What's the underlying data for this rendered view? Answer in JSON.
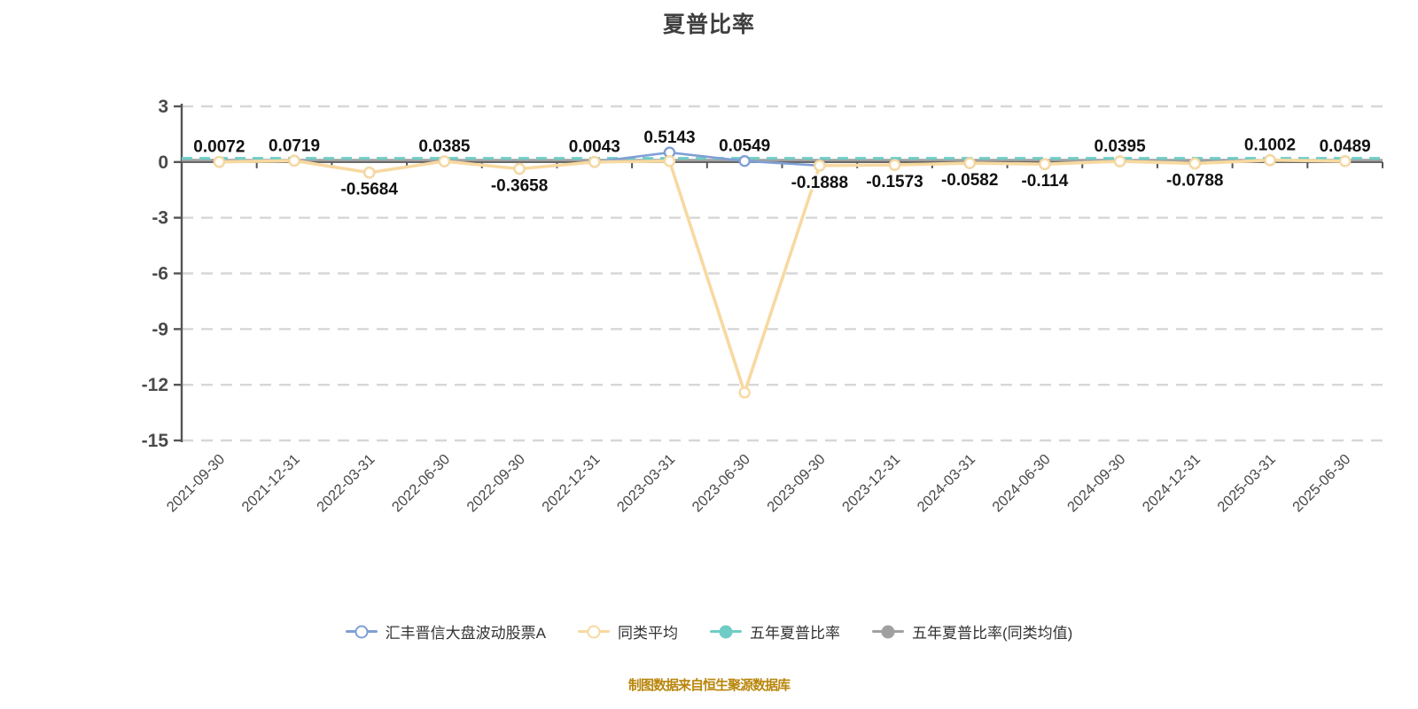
{
  "title": "夏普比率",
  "footer": "制图数据来自恒生聚源数据库",
  "colors": {
    "fund": "#7f9fd4",
    "peer": "#f7d9a0",
    "five_year": "#6fcdc6",
    "five_year_peer": "#a0a0a0",
    "axis": "#555555",
    "grid": "#d7d7d7",
    "tick_text": "#4a4a4a",
    "data_label": "#111111",
    "title_text": "#3f3f3f",
    "footer_text": "#b8860b"
  },
  "legend": [
    {
      "label": "汇丰晋信大盘波动股票A",
      "color": "#7f9fd4",
      "fill": "hollow"
    },
    {
      "label": "同类平均",
      "color": "#f7d9a0",
      "fill": "hollow"
    },
    {
      "label": "五年夏普比率",
      "color": "#6fcdc6",
      "fill": "solid"
    },
    {
      "label": "五年夏普比率(同类均值)",
      "color": "#a0a0a0",
      "fill": "solid"
    }
  ],
  "chart_data": {
    "type": "line",
    "title": "夏普比率",
    "xlabel": "",
    "ylabel": "",
    "ylim": [
      -15,
      3
    ],
    "yticks": [
      3,
      0,
      -3,
      -6,
      -9,
      -12,
      -15
    ],
    "grid": "dashed",
    "legend_position": "bottom",
    "categories": [
      "2021-09-30",
      "2021-12-31",
      "2022-03-31",
      "2022-06-30",
      "2022-09-30",
      "2022-12-31",
      "2023-03-31",
      "2023-06-30",
      "2023-09-30",
      "2023-12-31",
      "2024-03-31",
      "2024-06-30",
      "2024-09-30",
      "2024-12-31",
      "2025-03-31",
      "2025-06-30"
    ],
    "series": [
      {
        "name": "汇丰晋信大盘波动股票A",
        "color": "#7f9fd4",
        "marker": "hollow",
        "values": [
          0.0072,
          0.0719,
          -0.5684,
          0.0385,
          -0.3658,
          0.0043,
          0.5143,
          0.0549,
          -0.1888,
          -0.1573,
          -0.0582,
          -0.114,
          0.0395,
          -0.0788,
          0.1002,
          0.0489
        ],
        "point_labels": [
          "0.0072",
          "0.0719",
          "-0.5684",
          "0.0385",
          "-0.3658",
          "0.0043",
          "0.5143",
          "0.0549",
          "-0.1888",
          "-0.1573",
          "-0.0582",
          "-0.114",
          "0.0395",
          "-0.0788",
          "0.1002",
          "0.0489"
        ]
      },
      {
        "name": "同类平均",
        "color": "#f7d9a0",
        "marker": "hollow",
        "values": [
          0.0072,
          0.0719,
          -0.5684,
          0.0385,
          -0.3658,
          0.0043,
          0.05,
          -12.42,
          -0.1888,
          -0.1573,
          -0.0582,
          -0.114,
          0.0395,
          -0.0788,
          0.1002,
          0.0489
        ],
        "point_labels": []
      },
      {
        "name": "五年夏普比率",
        "color": "#6fcdc6",
        "style": "dashed",
        "constant": 0.2
      },
      {
        "name": "五年夏普比率(同类均值)",
        "color": "#a0a0a0",
        "style": "solid",
        "constant": 0.1
      }
    ]
  }
}
